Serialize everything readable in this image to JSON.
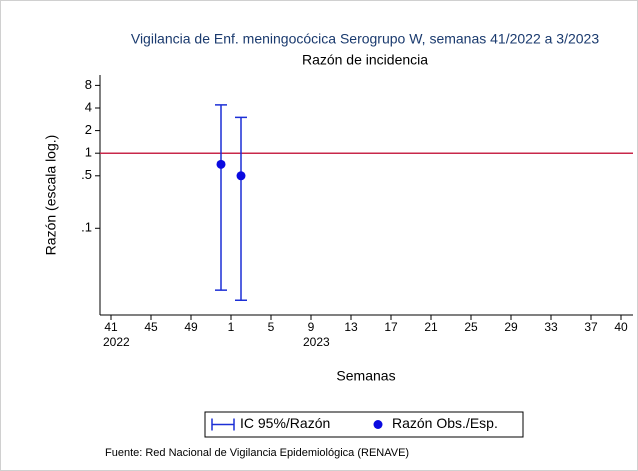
{
  "chart_data": {
    "type": "errorbar",
    "title": "Vigilancia de Enf. meningocócica Serogrupo W, semanas 41/2022 a 3/2023",
    "subtitle": "Razón de incidencia",
    "y_label": "Razón (escala log.)",
    "x_label": "Semanas",
    "note": "Fuente: Red Nacional de Vigilancia Epidemiológica (RENAVE)",
    "log_y": true,
    "ylim": [
      0.007,
      11
    ],
    "yticks": [
      8,
      4,
      2,
      1,
      {
        "value": 0.5,
        "label": ".5"
      },
      {
        "value": 0.1,
        "label": ".1"
      }
    ],
    "xlim": [
      -1.1,
      52.2
    ],
    "xticks": [
      {
        "value": 0,
        "label": "41"
      },
      {
        "value": 4,
        "label": "45"
      },
      {
        "value": 8,
        "label": "49"
      },
      {
        "value": 12,
        "label": "1"
      },
      {
        "value": 16,
        "label": "5"
      },
      {
        "value": 20,
        "label": "9"
      },
      {
        "value": 24,
        "label": "13"
      },
      {
        "value": 28,
        "label": "17"
      },
      {
        "value": 32,
        "label": "21"
      },
      {
        "value": 36,
        "label": "25"
      },
      {
        "value": 40,
        "label": "29"
      },
      {
        "value": 44,
        "label": "33"
      },
      {
        "value": 48,
        "label": "37"
      },
      {
        "value": 51,
        "label": "40"
      }
    ],
    "year_labels": [
      {
        "value": 0,
        "label": "2022"
      },
      {
        "value": 20,
        "label": "2023"
      }
    ],
    "reference_line": {
      "value": 1,
      "color": "#c8284a"
    },
    "series": [
      {
        "name": "IC 95%/Razón",
        "type": "errorbar",
        "color": "#1c2fd6",
        "x": [
          11,
          13
        ],
        "lower": [
          0.015,
          0.011
        ],
        "upper": [
          4.4,
          3.0
        ]
      },
      {
        "name": "Razón Obs./Esp.",
        "type": "scatter",
        "color": "#0a0ae0",
        "x": [
          11,
          13
        ],
        "values": [
          0.71,
          0.5
        ]
      }
    ]
  }
}
